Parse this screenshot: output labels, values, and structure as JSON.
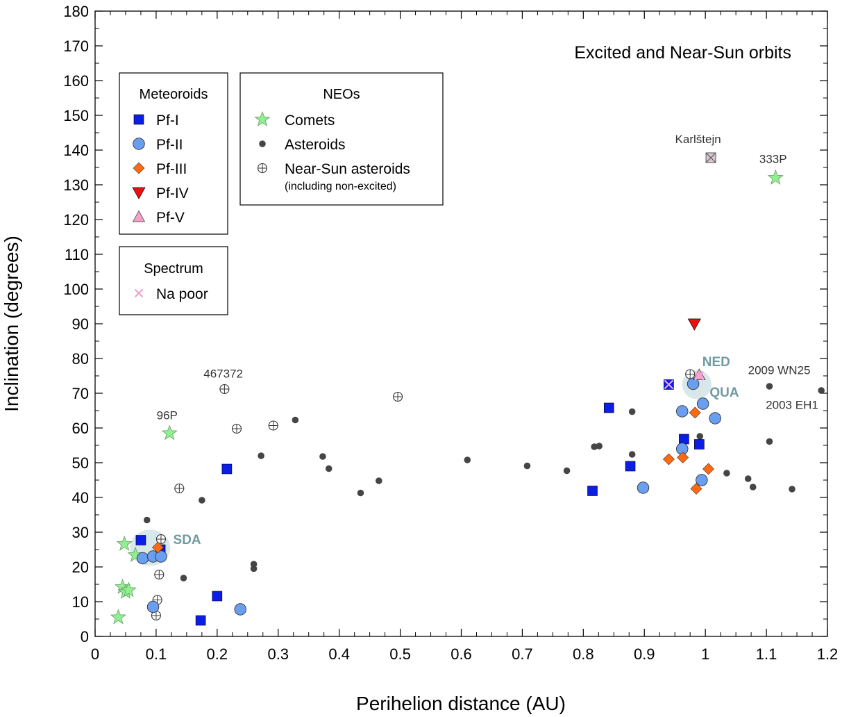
{
  "chart_data": {
    "type": "scatter",
    "title": "Excited and Near-Sun orbits",
    "xlabel": "Perihelion distance (AU)",
    "ylabel": "Inclination (degrees)",
    "xlim": [
      0,
      1.2
    ],
    "ylim": [
      0,
      180
    ],
    "xticks": [
      "0",
      "0.1",
      "0.2",
      "0.3",
      "0.4",
      "0.5",
      "0.6",
      "0.7",
      "0.8",
      "0.9",
      "1",
      "1.1",
      "1.2"
    ],
    "yticks": [
      "0",
      "10",
      "20",
      "30",
      "40",
      "50",
      "60",
      "70",
      "80",
      "90",
      "100",
      "110",
      "120",
      "130",
      "140",
      "150",
      "160",
      "170",
      "180"
    ],
    "grid": false,
    "colors": {
      "pf1": "#0a1ee6",
      "pf2": "#6a9ef0",
      "pf3": "#ff6a10",
      "pf4": "#ee1010",
      "pf5": "#f5a0c8",
      "comet": "#90f090",
      "asteroid": "#454545",
      "na_poor": "#f29ad0",
      "group_halo": "#a9cdd1"
    },
    "legends": [
      {
        "title": "Meteoroids",
        "position": "left",
        "entries": [
          {
            "key": "pf1",
            "label": "Pf-I",
            "marker": "square"
          },
          {
            "key": "pf2",
            "label": "Pf-II",
            "marker": "circle"
          },
          {
            "key": "pf3",
            "label": "Pf-III",
            "marker": "diamond"
          },
          {
            "key": "pf4",
            "label": "Pf-IV",
            "marker": "triangle-down"
          },
          {
            "key": "pf5",
            "label": "Pf-V",
            "marker": "triangle-up"
          }
        ]
      },
      {
        "title": "NEOs",
        "position": "top-center",
        "entries": [
          {
            "key": "comet",
            "label": "Comets",
            "marker": "star"
          },
          {
            "key": "asteroid",
            "label": "Asteroids",
            "marker": "dot"
          },
          {
            "key": "near_sun",
            "label": "Near-Sun asteroids",
            "sublabel": "(including non-excited)",
            "marker": "circle-cross"
          }
        ]
      },
      {
        "title": "Spectrum",
        "position": "left",
        "entries": [
          {
            "key": "na_poor",
            "label": "Na poor",
            "marker": "x"
          }
        ]
      }
    ],
    "series": [
      {
        "key": "asteroid",
        "marker": "dot",
        "points": [
          [
            0.085,
            33.5
          ],
          [
            0.145,
            16.8
          ],
          [
            0.175,
            39.2
          ],
          [
            0.26,
            20.8
          ],
          [
            0.26,
            19.5
          ],
          [
            0.272,
            52
          ],
          [
            0.328,
            62.3
          ],
          [
            0.373,
            51.8
          ],
          [
            0.383,
            48.3
          ],
          [
            0.435,
            41.3
          ],
          [
            0.465,
            44.8
          ],
          [
            0.61,
            50.8
          ],
          [
            0.708,
            49.1
          ],
          [
            0.773,
            47.7
          ],
          [
            0.818,
            54.6
          ],
          [
            0.826,
            54.8
          ],
          [
            0.88,
            64.7
          ],
          [
            0.88,
            52.4
          ],
          [
            0.991,
            57.6
          ],
          [
            1.035,
            47
          ],
          [
            1.07,
            45.4
          ],
          [
            1.078,
            43
          ],
          [
            1.105,
            56.1
          ],
          [
            1.105,
            72
          ],
          [
            1.142,
            42.4
          ],
          [
            1.19,
            70.8
          ]
        ]
      },
      {
        "key": "near_sun",
        "marker": "circle-cross",
        "points": [
          [
            0.1,
            6
          ],
          [
            0.102,
            10.5
          ],
          [
            0.105,
            17.8
          ],
          [
            0.108,
            28
          ],
          [
            0.138,
            42.6
          ],
          [
            0.212,
            71.2
          ],
          [
            0.232,
            59.8
          ],
          [
            0.292,
            60.7
          ],
          [
            0.496,
            69
          ],
          [
            0.975,
            75.5
          ]
        ]
      },
      {
        "key": "comet",
        "marker": "star",
        "points": [
          [
            0.038,
            5.5
          ],
          [
            0.045,
            14.2
          ],
          [
            0.05,
            12.8
          ],
          [
            0.055,
            13.3
          ],
          [
            0.048,
            26.6
          ],
          [
            0.066,
            23.4
          ],
          [
            0.122,
            58.5
          ],
          [
            1.115,
            132
          ]
        ]
      },
      {
        "key": "pf1",
        "marker": "square",
        "points": [
          [
            0.075,
            27.7
          ],
          [
            0.107,
            25
          ],
          [
            0.173,
            4.6
          ],
          [
            0.2,
            11.6
          ],
          [
            0.216,
            48.2
          ],
          [
            0.815,
            41.9
          ],
          [
            0.842,
            65.8
          ],
          [
            0.877,
            49
          ],
          [
            0.94,
            72.5
          ],
          [
            0.965,
            56.8
          ],
          [
            0.99,
            55.3
          ]
        ]
      },
      {
        "key": "pf2",
        "marker": "circle",
        "points": [
          [
            0.078,
            22.5
          ],
          [
            0.095,
            23
          ],
          [
            0.108,
            23
          ],
          [
            0.095,
            8.5
          ],
          [
            0.238,
            7.8
          ],
          [
            0.898,
            42.8
          ],
          [
            0.962,
            54
          ],
          [
            0.962,
            64.8
          ],
          [
            0.98,
            72.7
          ],
          [
            0.996,
            67
          ],
          [
            1.016,
            62.8
          ],
          [
            0.994,
            45
          ]
        ]
      },
      {
        "key": "pf3",
        "marker": "diamond",
        "points": [
          [
            0.103,
            25.6
          ],
          [
            0.94,
            51
          ],
          [
            0.963,
            51.5
          ],
          [
            0.983,
            64.4
          ],
          [
            0.985,
            42.5
          ],
          [
            1.005,
            48.2
          ]
        ]
      },
      {
        "key": "pf4",
        "marker": "triangle-down",
        "points": [
          [
            0.982,
            90
          ]
        ]
      },
      {
        "key": "pf5",
        "marker": "triangle-up",
        "points": [
          [
            0.99,
            75.3
          ]
        ]
      },
      {
        "key": "karlstejn",
        "marker": "square-x",
        "points": [
          [
            1.009,
            137.8
          ]
        ]
      }
    ],
    "na_poor_points": [
      [
        0.94,
        72.5
      ],
      [
        0.99,
        75
      ]
    ],
    "group_halos": [
      {
        "label": "SDA",
        "center": [
          0.09,
          25.5
        ],
        "radius": [
          0.033,
          5.2
        ]
      },
      {
        "label": "QUA",
        "center": [
          0.986,
          72.5
        ],
        "radius": [
          0.024,
          4.2
        ]
      }
    ],
    "annotations": [
      {
        "text": "Karlštejn",
        "at": [
          0.988,
          142
        ],
        "class": "ann",
        "anchor": "middle"
      },
      {
        "text": "333P",
        "at": [
          1.111,
          136.3
        ],
        "class": "ann",
        "anchor": "middle"
      },
      {
        "text": "467372",
        "at": [
          0.21,
          74.5
        ],
        "class": "ann",
        "anchor": "middle"
      },
      {
        "text": "96P",
        "at": [
          0.118,
          62.5
        ],
        "class": "ann",
        "anchor": "middle"
      },
      {
        "text": "2009 WN25",
        "at": [
          1.121,
          75.5
        ],
        "class": "ann",
        "anchor": "middle"
      },
      {
        "text": "2003 EH1",
        "at": [
          1.142,
          65.5
        ],
        "class": "ann",
        "anchor": "middle"
      },
      {
        "text": "NED",
        "at": [
          0.995,
          77.8
        ],
        "class": "ann-group",
        "anchor": "start"
      },
      {
        "text": "QUA",
        "at": [
          1.007,
          69
        ],
        "class": "ann-group",
        "anchor": "start"
      },
      {
        "text": "SDA",
        "at": [
          0.128,
          26.6
        ],
        "class": "ann-group",
        "anchor": "start"
      }
    ]
  }
}
